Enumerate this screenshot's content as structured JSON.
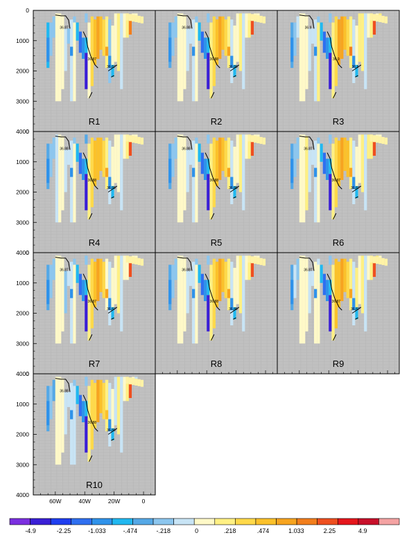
{
  "chart_data": {
    "type": "heatmap",
    "panels": [
      {
        "label": "R1",
        "contour_labels": [
          "36.87",
          "36.87",
          "36.87"
        ]
      },
      {
        "label": "R2",
        "contour_labels": [
          "36.88",
          "36.88",
          "36.88"
        ]
      },
      {
        "label": "R3",
        "contour_labels": [
          "36.9",
          "36.9",
          "36.9"
        ]
      },
      {
        "label": "R4",
        "contour_labels": [
          "36.88",
          "36.88",
          "36.88"
        ]
      },
      {
        "label": "R5",
        "contour_labels": [
          "36.88",
          "36.88",
          "36.88"
        ]
      },
      {
        "label": "R6",
        "contour_labels": [
          "36.87",
          "36.87",
          "36.87"
        ]
      },
      {
        "label": "R7",
        "contour_labels": [
          "36.87",
          "36.87",
          "36.87"
        ]
      },
      {
        "label": "R8",
        "contour_labels": [
          "36.88",
          "36.88",
          "36.88"
        ]
      },
      {
        "label": "R9",
        "contour_labels": [
          "36.87",
          "36.87",
          "36.87"
        ]
      },
      {
        "label": "R10",
        "contour_labels": [
          "36.88",
          "36.88",
          "36.88"
        ]
      }
    ],
    "y_ticks": [
      "0",
      "1000",
      "2000",
      "3000",
      "4000"
    ],
    "ylim": [
      4000,
      0
    ],
    "x_ticks": [
      "60W",
      "40W",
      "20W",
      "0"
    ],
    "xlim": [
      -75,
      8
    ],
    "colorbar": {
      "colors": [
        "#7b2fe0",
        "#3a1fd6",
        "#1f3ef0",
        "#2f6ff0",
        "#2f92ea",
        "#21b8f0",
        "#55a8e6",
        "#8cc6ee",
        "#c8e4f5",
        "#fff9c8",
        "#fff083",
        "#ffd94a",
        "#fbc12a",
        "#f7a41f",
        "#f27e1c",
        "#ee4f1f",
        "#e5161c",
        "#c8102a",
        "#f4a2a2"
      ],
      "labels": [
        "-4.9",
        "-2.25",
        "-1.033",
        "-.474",
        "-.218",
        "0",
        ".218",
        ".474",
        "1.033",
        "2.25",
        "4.9"
      ]
    }
  }
}
